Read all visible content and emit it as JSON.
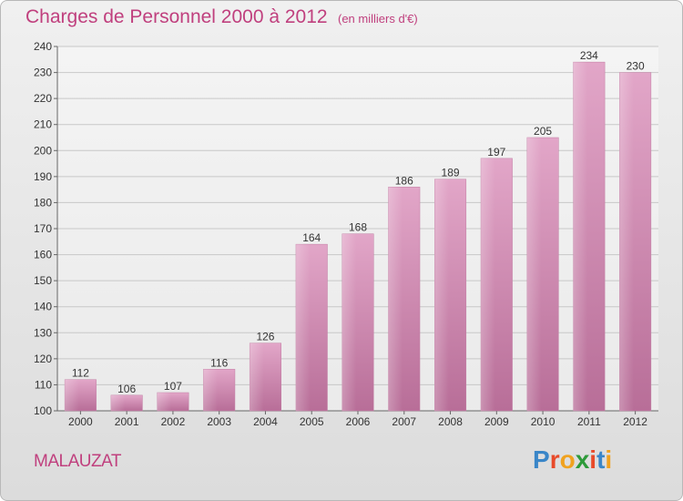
{
  "chart_data": {
    "type": "bar",
    "title": "Charges de Personnel 2000 à 2012",
    "subtitle": "(en milliers d'€)",
    "categories": [
      "2000",
      "2001",
      "2002",
      "2003",
      "2004",
      "2005",
      "2006",
      "2007",
      "2008",
      "2009",
      "2010",
      "2011",
      "2012"
    ],
    "values": [
      112,
      106,
      107,
      116,
      126,
      164,
      168,
      186,
      189,
      197,
      205,
      234,
      230
    ],
    "xlabel": "",
    "ylabel": "",
    "ylim": [
      100,
      240
    ],
    "ytick_step": 10,
    "grid": true,
    "legend": "none",
    "bar_color": "#d890b8",
    "data_labels": true
  },
  "place_name": "MALAUZAT",
  "logo": {
    "text": "Proxiti",
    "letter_colors": [
      "#3a86c8",
      "#e84a2a",
      "#f0a21f",
      "#2e9a3a",
      "#e84a2a",
      "#3a86c8",
      "#f0a21f"
    ]
  }
}
